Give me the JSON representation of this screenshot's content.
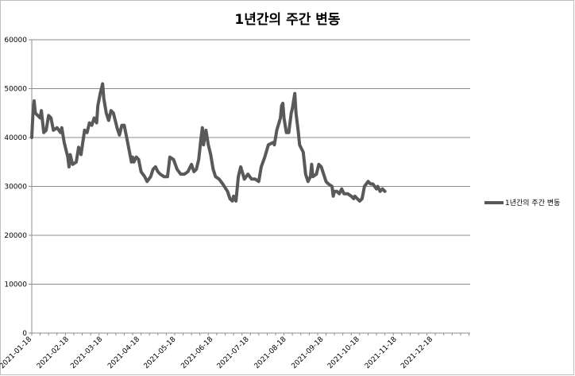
{
  "chart_data": {
    "type": "line",
    "title": "1년간의 주간 변동",
    "xlabel": "",
    "ylabel": "",
    "ylim": [
      0,
      60000
    ],
    "yticks": [
      "0",
      "10000",
      "20000",
      "30000",
      "40000",
      "50000",
      "60000"
    ],
    "xlim": [
      "2021-01-18",
      "2022-01-18"
    ],
    "xticks": [
      "2021-01-18",
      "2021-02-18",
      "2021-03-18",
      "2021-04-18",
      "2021-05-18",
      "2021-06-18",
      "2021-07-18",
      "2021-08-18",
      "2021-09-18",
      "2021-10-18",
      "2021-11-18",
      "2021-12-18"
    ],
    "grid": "horizontal",
    "legend_position": "right",
    "series": [
      {
        "name": "1년간의 주간 변동",
        "color": "#595959",
        "points": [
          [
            "2021-01-18",
            40000
          ],
          [
            "2021-01-19",
            45000
          ],
          [
            "2021-01-20",
            47500
          ],
          [
            "2021-01-21",
            45000
          ],
          [
            "2021-01-23",
            44500
          ],
          [
            "2021-01-25",
            44000
          ],
          [
            "2021-01-26",
            45500
          ],
          [
            "2021-01-28",
            41000
          ],
          [
            "2021-01-30",
            41500
          ],
          [
            "2021-02-01",
            44500
          ],
          [
            "2021-02-03",
            44000
          ],
          [
            "2021-02-05",
            41500
          ],
          [
            "2021-02-08",
            42000
          ],
          [
            "2021-02-11",
            41000
          ],
          [
            "2021-02-12",
            42000
          ],
          [
            "2021-02-14",
            39000
          ],
          [
            "2021-02-17",
            36000
          ],
          [
            "2021-02-18",
            34000
          ],
          [
            "2021-02-19",
            36500
          ],
          [
            "2021-02-21",
            34500
          ],
          [
            "2021-02-24",
            35000
          ],
          [
            "2021-02-26",
            38000
          ],
          [
            "2021-02-28",
            36500
          ],
          [
            "2021-03-03",
            41500
          ],
          [
            "2021-03-05",
            41000
          ],
          [
            "2021-03-07",
            43000
          ],
          [
            "2021-03-09",
            42500
          ],
          [
            "2021-03-11",
            44000
          ],
          [
            "2021-03-13",
            43000
          ],
          [
            "2021-03-14",
            46500
          ],
          [
            "2021-03-16",
            49000
          ],
          [
            "2021-03-18",
            51000
          ],
          [
            "2021-03-19",
            48000
          ],
          [
            "2021-03-21",
            45000
          ],
          [
            "2021-03-23",
            43500
          ],
          [
            "2021-03-25",
            45500
          ],
          [
            "2021-03-27",
            45000
          ],
          [
            "2021-03-30",
            42000
          ],
          [
            "2021-04-01",
            40500
          ],
          [
            "2021-04-03",
            42500
          ],
          [
            "2021-04-05",
            42500
          ],
          [
            "2021-04-07",
            40000
          ],
          [
            "2021-04-09",
            37500
          ],
          [
            "2021-04-11",
            35000
          ],
          [
            "2021-04-12",
            36000
          ],
          [
            "2021-04-13",
            35000
          ],
          [
            "2021-04-15",
            36000
          ],
          [
            "2021-04-17",
            35500
          ],
          [
            "2021-04-19",
            33000
          ],
          [
            "2021-04-22",
            32000
          ],
          [
            "2021-04-24",
            31000
          ],
          [
            "2021-04-27",
            32000
          ],
          [
            "2021-04-29",
            33500
          ],
          [
            "2021-05-01",
            34000
          ],
          [
            "2021-05-03",
            33000
          ],
          [
            "2021-05-05",
            32500
          ],
          [
            "2021-05-08",
            32000
          ],
          [
            "2021-05-11",
            32000
          ],
          [
            "2021-05-13",
            36000
          ],
          [
            "2021-05-16",
            35500
          ],
          [
            "2021-05-19",
            33500
          ],
          [
            "2021-05-22",
            32500
          ],
          [
            "2021-05-25",
            32500
          ],
          [
            "2021-05-28",
            33000
          ],
          [
            "2021-05-31",
            34500
          ],
          [
            "2021-06-02",
            33000
          ],
          [
            "2021-06-04",
            33500
          ],
          [
            "2021-06-06",
            35500
          ],
          [
            "2021-06-08",
            40000
          ],
          [
            "2021-06-09",
            42000
          ],
          [
            "2021-06-10",
            38500
          ],
          [
            "2021-06-12",
            41500
          ],
          [
            "2021-06-14",
            38500
          ],
          [
            "2021-06-16",
            36500
          ],
          [
            "2021-06-18",
            33500
          ],
          [
            "2021-06-20",
            32000
          ],
          [
            "2021-06-23",
            31500
          ],
          [
            "2021-06-26",
            30500
          ],
          [
            "2021-06-30",
            29000
          ],
          [
            "2021-07-02",
            27500
          ],
          [
            "2021-07-04",
            27000
          ],
          [
            "2021-07-05",
            28000
          ],
          [
            "2021-07-07",
            27000
          ],
          [
            "2021-07-09",
            32000
          ],
          [
            "2021-07-11",
            34000
          ],
          [
            "2021-07-14",
            31500
          ],
          [
            "2021-07-17",
            32500
          ],
          [
            "2021-07-20",
            31500
          ],
          [
            "2021-07-23",
            31500
          ],
          [
            "2021-07-26",
            31000
          ],
          [
            "2021-07-28",
            34000
          ],
          [
            "2021-07-31",
            36000
          ],
          [
            "2021-08-03",
            38500
          ],
          [
            "2021-08-07",
            39000
          ],
          [
            "2021-08-08",
            38500
          ],
          [
            "2021-08-10",
            41500
          ],
          [
            "2021-08-13",
            44000
          ],
          [
            "2021-08-14",
            46500
          ],
          [
            "2021-08-15",
            47000
          ],
          [
            "2021-08-16",
            44000
          ],
          [
            "2021-08-18",
            41000
          ],
          [
            "2021-08-20",
            41000
          ],
          [
            "2021-08-22",
            45000
          ],
          [
            "2021-08-23",
            46000
          ],
          [
            "2021-08-25",
            49000
          ],
          [
            "2021-08-26",
            45000
          ],
          [
            "2021-08-28",
            41000
          ],
          [
            "2021-08-29",
            38500
          ],
          [
            "2021-09-01",
            37000
          ],
          [
            "2021-09-03",
            32500
          ],
          [
            "2021-09-05",
            31000
          ],
          [
            "2021-09-07",
            32000
          ],
          [
            "2021-09-08",
            34500
          ],
          [
            "2021-09-09",
            32000
          ],
          [
            "2021-09-12",
            32500
          ],
          [
            "2021-09-14",
            34500
          ],
          [
            "2021-09-16",
            34000
          ],
          [
            "2021-09-18",
            32500
          ],
          [
            "2021-09-20",
            31000
          ],
          [
            "2021-09-22",
            30500
          ],
          [
            "2021-09-25",
            30000
          ],
          [
            "2021-09-26",
            28000
          ],
          [
            "2021-09-27",
            29000
          ],
          [
            "2021-09-29",
            29000
          ],
          [
            "2021-10-01",
            28500
          ],
          [
            "2021-10-03",
            29500
          ],
          [
            "2021-10-05",
            28500
          ],
          [
            "2021-10-08",
            28500
          ],
          [
            "2021-10-11",
            28000
          ],
          [
            "2021-10-13",
            27500
          ],
          [
            "2021-10-14",
            28000
          ],
          [
            "2021-10-16",
            27500
          ],
          [
            "2021-10-18",
            27000
          ],
          [
            "2021-10-20",
            27500
          ],
          [
            "2021-10-22",
            30000
          ],
          [
            "2021-10-25",
            31000
          ],
          [
            "2021-10-27",
            30500
          ],
          [
            "2021-10-29",
            30500
          ],
          [
            "2021-11-01",
            29500
          ],
          [
            "2021-11-02",
            30000
          ],
          [
            "2021-11-04",
            29000
          ],
          [
            "2021-11-06",
            29500
          ],
          [
            "2021-11-08",
            29000
          ]
        ]
      }
    ]
  }
}
